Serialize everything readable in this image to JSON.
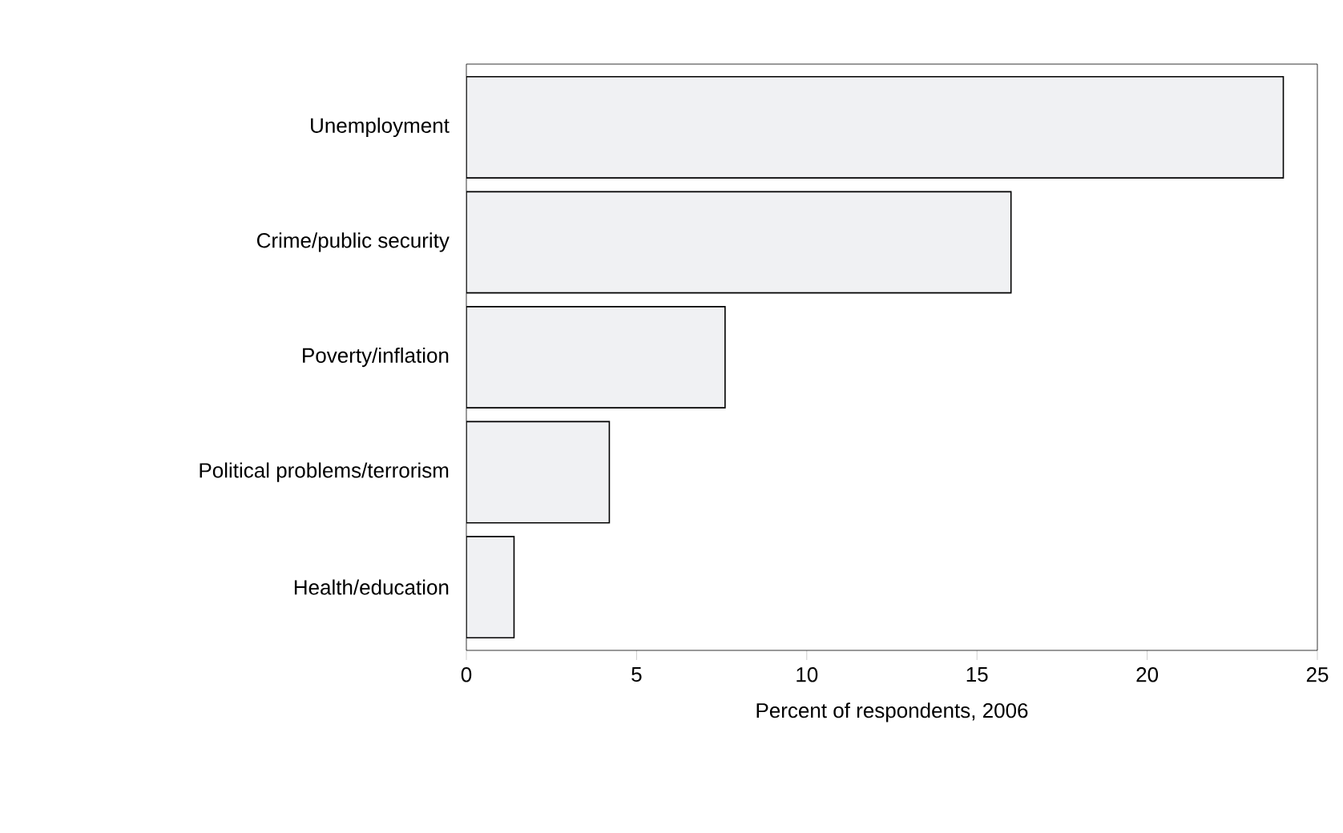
{
  "chart_data": {
    "type": "bar",
    "orientation": "horizontal",
    "xlabel": "Percent of respondents, 2006",
    "categories": [
      "Unemployment",
      "Crime/public security",
      "Poverty/inflation",
      "Political problems/terrorism",
      "Health/education"
    ],
    "values": [
      24,
      16,
      7.6,
      4.2,
      1.4
    ],
    "color": "#f0f1f3",
    "xlim": [
      0,
      25
    ],
    "xticks": [
      0,
      5,
      10,
      15,
      20,
      25
    ],
    "grid": false
  }
}
